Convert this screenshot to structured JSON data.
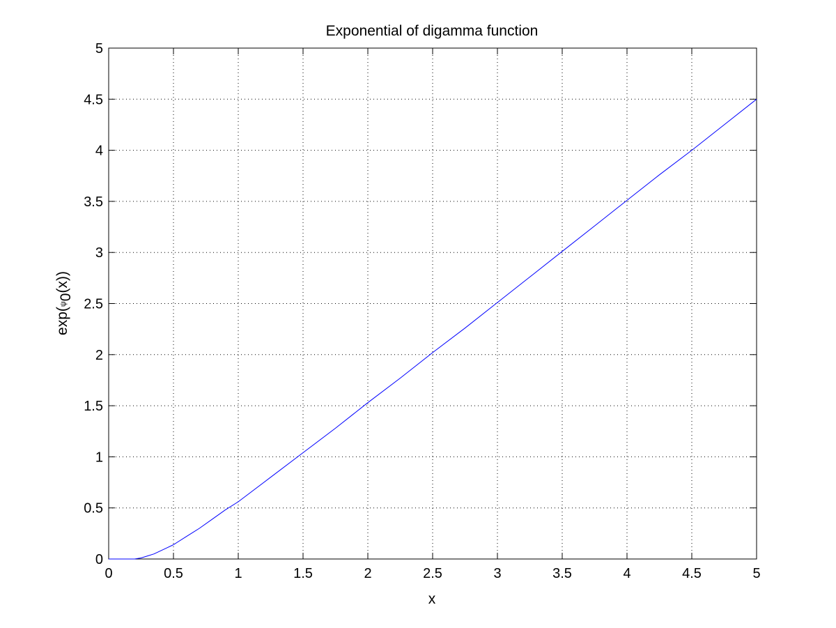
{
  "chart_data": {
    "type": "line",
    "title": "Exponential of digamma function",
    "xlabel": "x",
    "ylabel": {
      "prefix": "exp(",
      "symbol": "ψ",
      "subscript": "0",
      "suffix": "(x))"
    },
    "xlim": [
      0,
      5
    ],
    "ylim": [
      0,
      5
    ],
    "xticks": [
      0,
      0.5,
      1,
      1.5,
      2,
      2.5,
      3,
      3.5,
      4,
      4.5,
      5
    ],
    "yticks": [
      0,
      0.5,
      1,
      1.5,
      2,
      2.5,
      3,
      3.5,
      4,
      4.5,
      5
    ],
    "xtick_labels": [
      "0",
      "0.5",
      "1",
      "1.5",
      "2",
      "2.5",
      "3",
      "3.5",
      "4",
      "4.5",
      "5"
    ],
    "ytick_labels": [
      "0",
      "0.5",
      "1",
      "1.5",
      "2",
      "2.5",
      "3",
      "3.5",
      "4",
      "4.5",
      "5"
    ],
    "grid": true,
    "series": [
      {
        "color": "#0000ff",
        "x": [
          0.05,
          0.1,
          0.15,
          0.2,
          0.25,
          0.3,
          0.35,
          0.4,
          0.45,
          0.5,
          0.6,
          0.7,
          0.8,
          0.9,
          1.0,
          1.25,
          1.5,
          1.75,
          2.0,
          2.25,
          2.5,
          2.75,
          3.0,
          3.25,
          3.5,
          3.75,
          4.0,
          4.25,
          4.5,
          4.75,
          5.0
        ],
        "y": [
          0.0,
          0.0,
          0.0,
          0.0,
          0.01,
          0.03,
          0.05,
          0.08,
          0.11,
          0.14,
          0.22,
          0.3,
          0.39,
          0.48,
          0.56,
          0.8,
          1.04,
          1.28,
          1.53,
          1.77,
          2.02,
          2.26,
          2.51,
          2.76,
          3.01,
          3.26,
          3.51,
          3.76,
          4.0,
          4.25,
          4.5
        ]
      }
    ]
  }
}
